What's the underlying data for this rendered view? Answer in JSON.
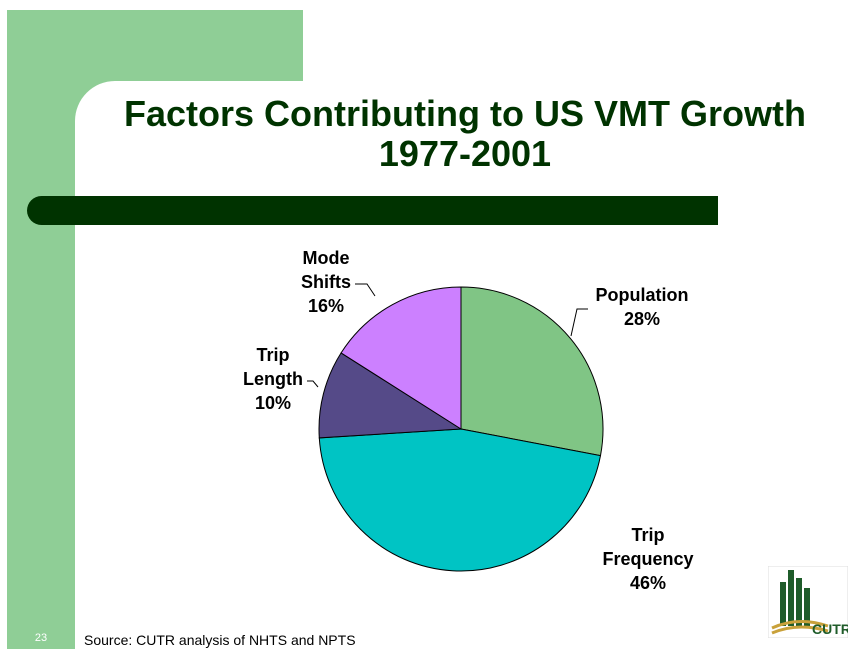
{
  "slide": {
    "title_line1": "Factors Contributing to US VMT Growth",
    "title_line2": "1977-2001",
    "number": "23",
    "source": "Source: CUTR analysis of NHTS and NPTS",
    "logo_text": "CUTR"
  },
  "colors": {
    "accent_green": "#8fce96",
    "title_dark_green": "#003300"
  },
  "chart_data": {
    "type": "pie",
    "title": "",
    "start_angle_deg": 0,
    "direction": "clockwise",
    "slices": [
      {
        "label_lines": [
          "Population",
          "28%"
        ],
        "value": 28,
        "color": "#80c585"
      },
      {
        "label_lines": [
          "Trip",
          "Frequency",
          "46%"
        ],
        "value": 46,
        "color": "#00c4c4"
      },
      {
        "label_lines": [
          "Trip",
          "Length",
          "10%"
        ],
        "value": 10,
        "color": "#554a88"
      },
      {
        "label_lines": [
          "Mode",
          "Shifts",
          "16%"
        ],
        "value": 16,
        "color": "#cc80ff"
      }
    ]
  }
}
